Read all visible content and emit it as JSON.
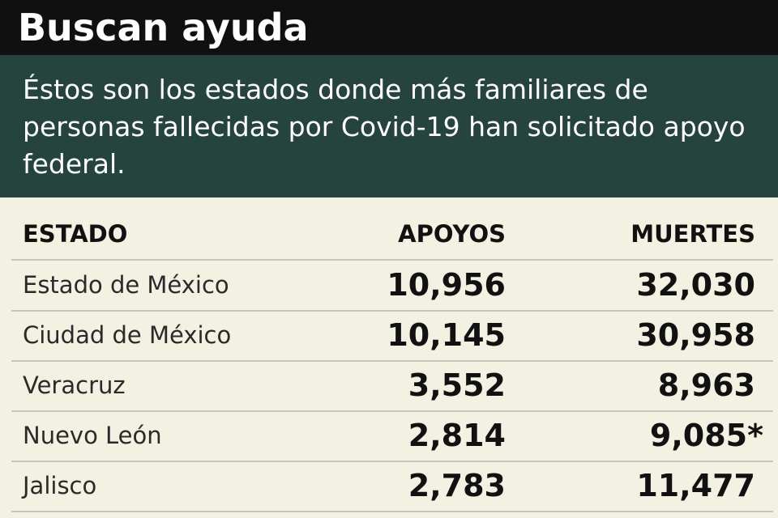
{
  "header": {
    "title": "Buscan ayuda",
    "subtitle": "Éstos son los estados donde más familiares de personas fallecidas por Covid-19 han solicitado apoyo federal."
  },
  "chart_data": {
    "type": "table",
    "columns": [
      "ESTADO",
      "APOYOS",
      "MUERTES"
    ],
    "rows": [
      {
        "estado": "Estado de México",
        "apoyos": "10,956",
        "muertes": "32,030"
      },
      {
        "estado": "Ciudad de México",
        "apoyos": "10,145",
        "muertes": "30,958"
      },
      {
        "estado": "Veracruz",
        "apoyos": "3,552",
        "muertes": "8,963"
      },
      {
        "estado": "Nuevo León",
        "apoyos": "2,814",
        "muertes": "9,085*"
      },
      {
        "estado": "Jalisco",
        "apoyos": "2,783",
        "muertes": "11,477"
      }
    ]
  },
  "colors": {
    "title_bar": "#101010",
    "subtitle_band": "#24443d",
    "table_background": "#f3f1e2"
  }
}
